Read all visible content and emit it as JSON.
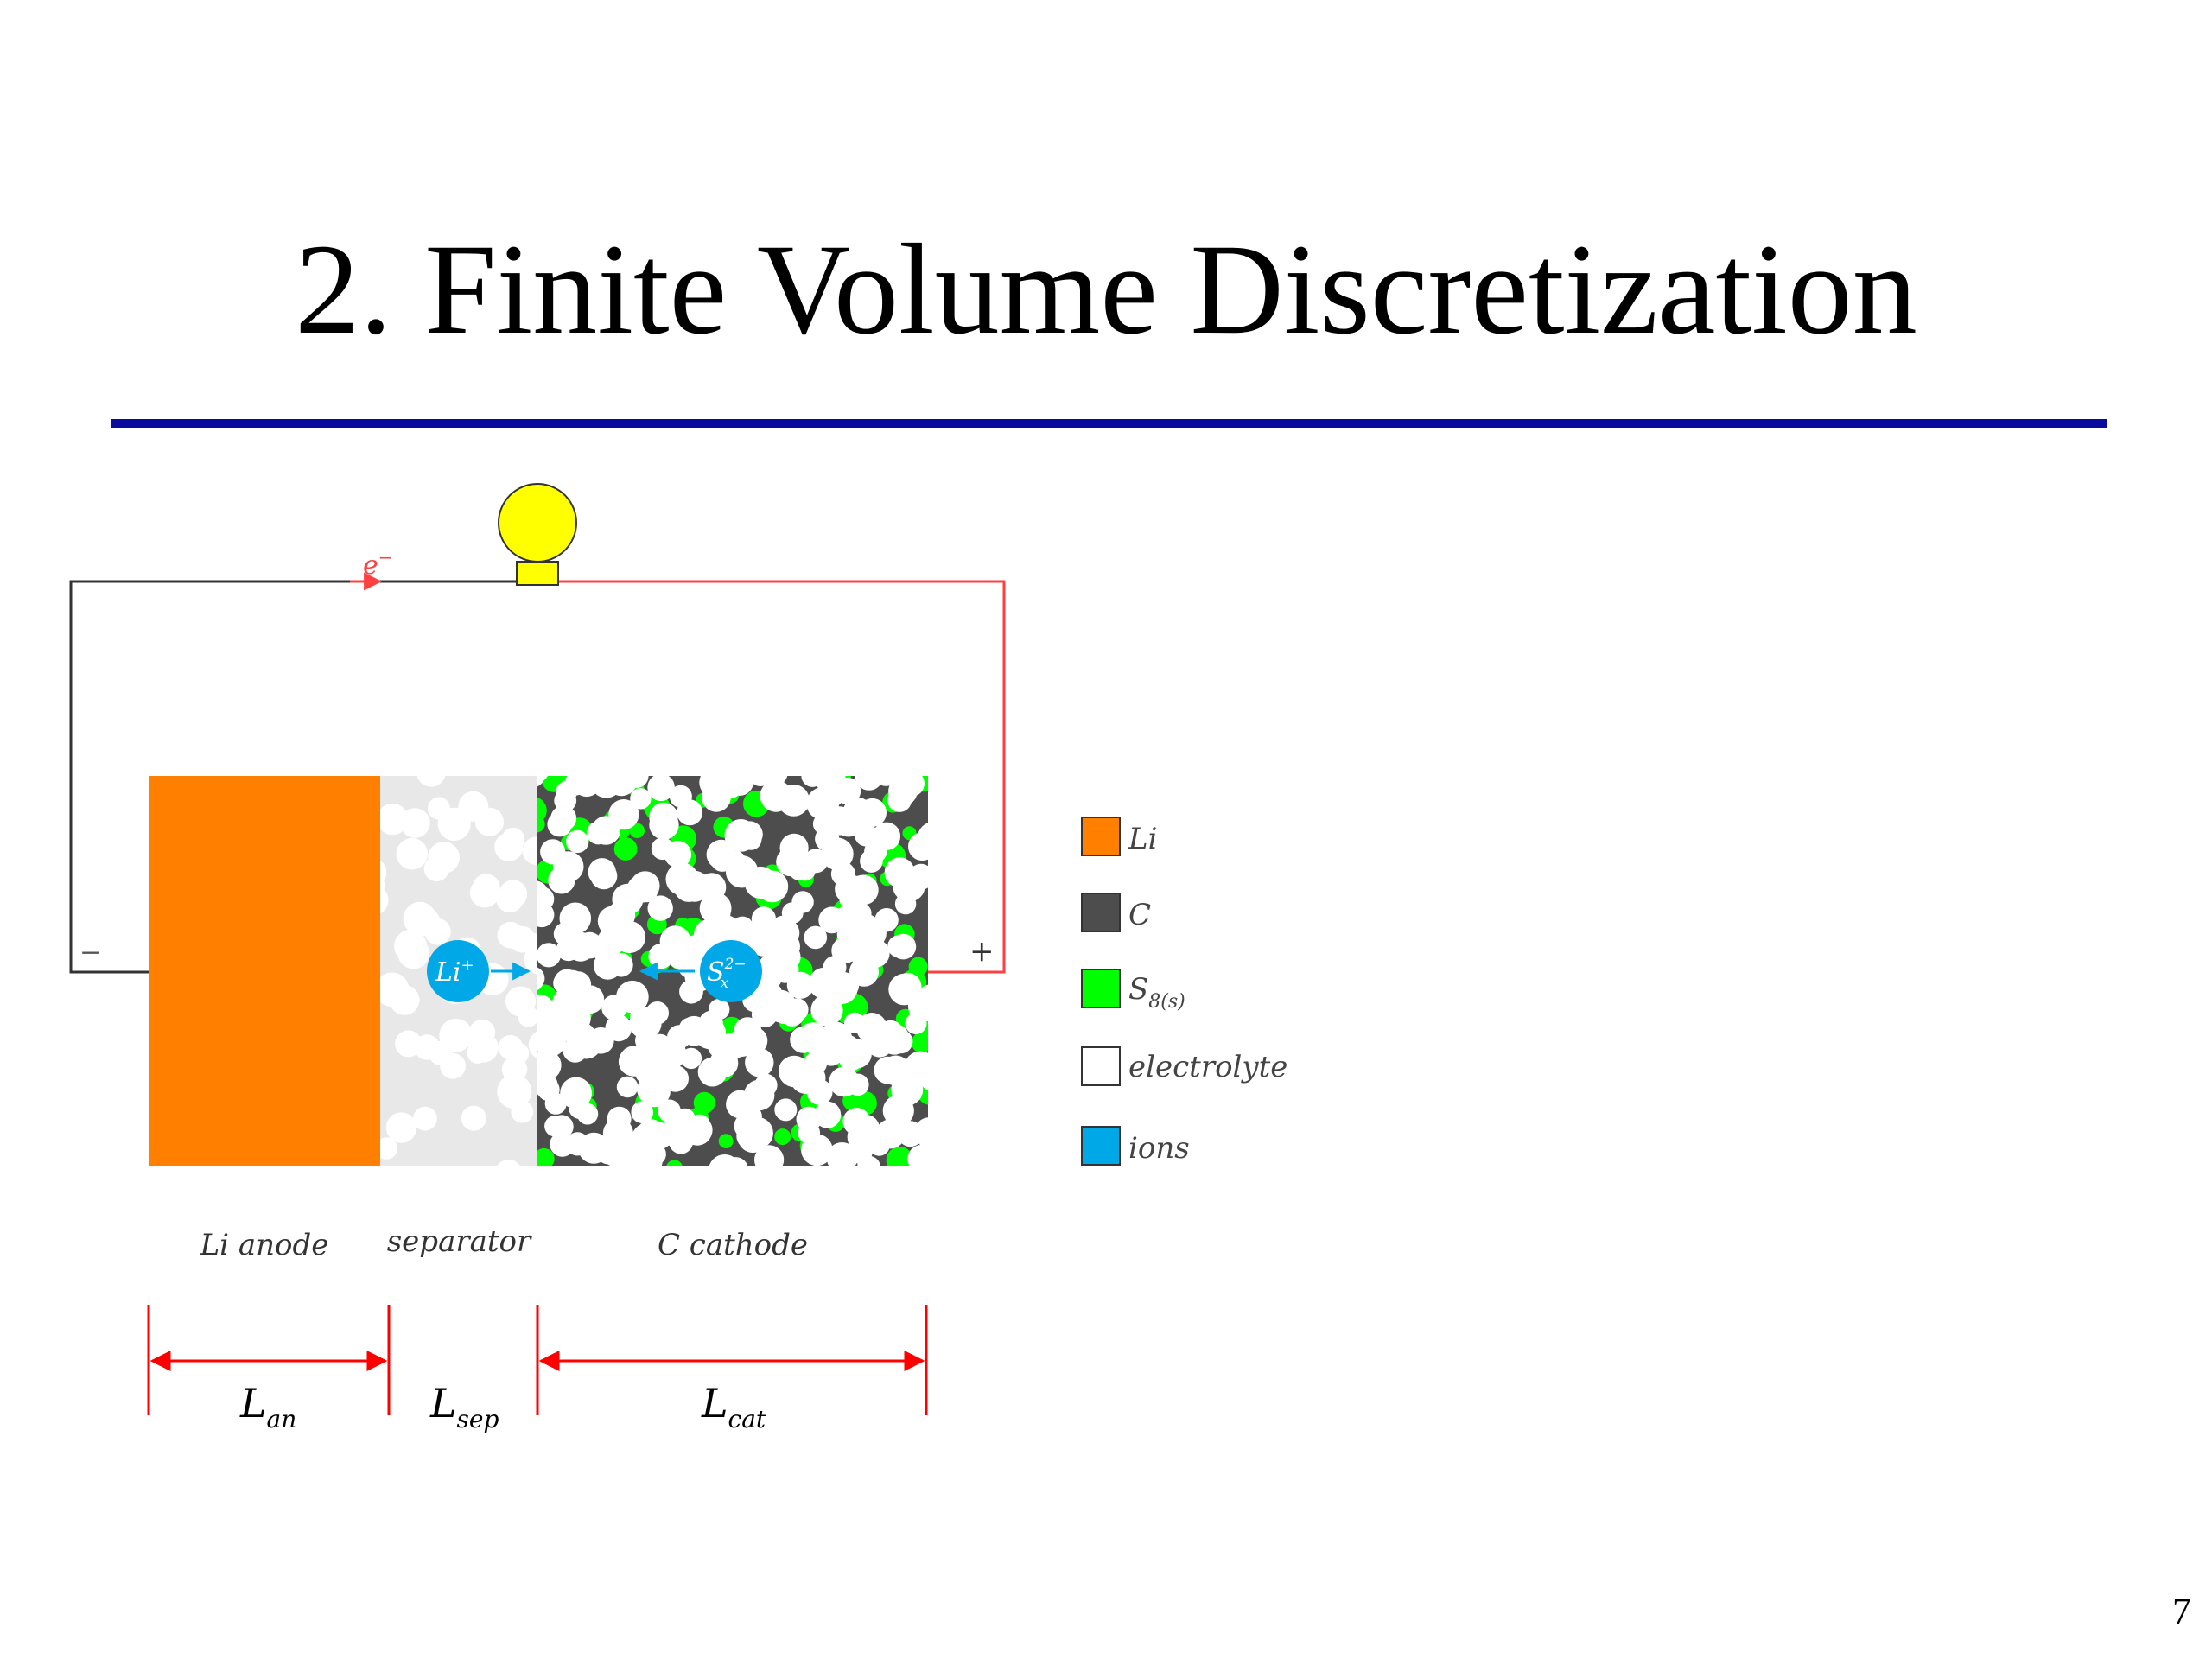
{
  "slide": {
    "title": "2. Finite Volume Discretization",
    "page_number": "7"
  },
  "diagram": {
    "electron_label": "e",
    "electron_sup": "−",
    "minus_terminal": "−",
    "plus_terminal": "+",
    "ion_li": "Li",
    "ion_li_sup": "+",
    "ion_s": "S",
    "ion_s_sup": "2−",
    "ion_s_sub": "x",
    "region_labels": {
      "anode": "Li anode",
      "separator": "separator",
      "cathode": "C cathode"
    },
    "lengths": {
      "anode": {
        "main": "L",
        "sub": "an"
      },
      "separator": {
        "main": "L",
        "sub": "sep"
      },
      "cathode": {
        "main": "L",
        "sub": "cat"
      }
    },
    "legend": [
      {
        "label": "Li",
        "sub": "",
        "color": "#ff7f00"
      },
      {
        "label": "C",
        "sub": "",
        "color": "#4d4d4d"
      },
      {
        "label": "S",
        "sub": "8(s)",
        "color": "#00ff00"
      },
      {
        "label": "electrolyte",
        "sub": "",
        "color": "#ffffff"
      },
      {
        "label": "ions",
        "sub": "",
        "color": "#00a8e8"
      }
    ],
    "colors": {
      "wire_dark": "#333333",
      "wire_red": "#ff4040",
      "bulb": "#ffff00",
      "anode": "#ff7f00",
      "separator_bg": "#e8e8e8",
      "carbon": "#4d4d4d",
      "sulfur": "#00ff00",
      "ion": "#00a8e8",
      "dimension": "#ff0000",
      "title_rule": "#0a0a9c"
    }
  }
}
